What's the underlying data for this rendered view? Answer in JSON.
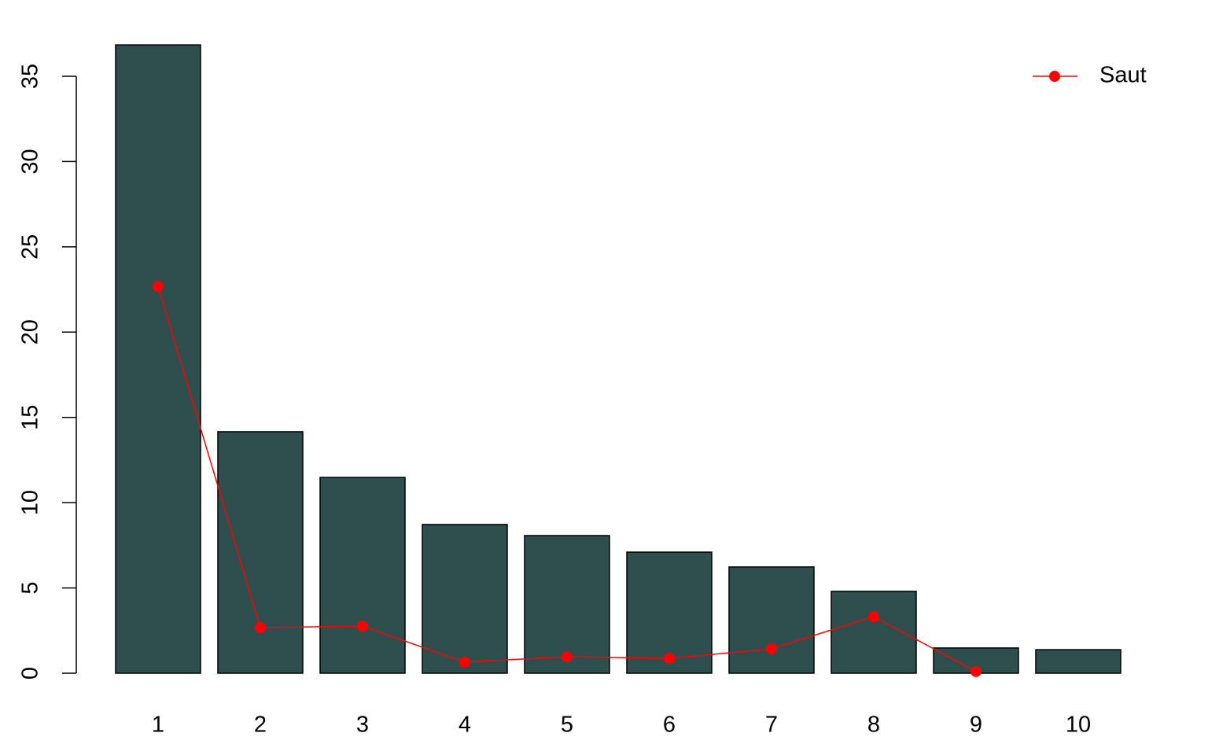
{
  "chart_data": {
    "type": "bar",
    "categories": [
      "1",
      "2",
      "3",
      "4",
      "5",
      "6",
      "7",
      "8",
      "9",
      "10"
    ],
    "bars": {
      "color": "#2f4f4f",
      "values": [
        36.84,
        14.16,
        11.48,
        8.72,
        8.07,
        7.1,
        6.23,
        4.8,
        1.48,
        1.38
      ]
    },
    "series": [
      {
        "name": "Saut",
        "color": "#ff0000",
        "values": [
          22.68,
          2.68,
          2.76,
          0.65,
          0.97,
          0.87,
          1.43,
          3.32,
          0.1,
          null
        ]
      }
    ],
    "ylim": [
      0,
      35
    ],
    "yticks": [
      0,
      5,
      10,
      15,
      20,
      25,
      30,
      35
    ],
    "legend": "top-right"
  }
}
